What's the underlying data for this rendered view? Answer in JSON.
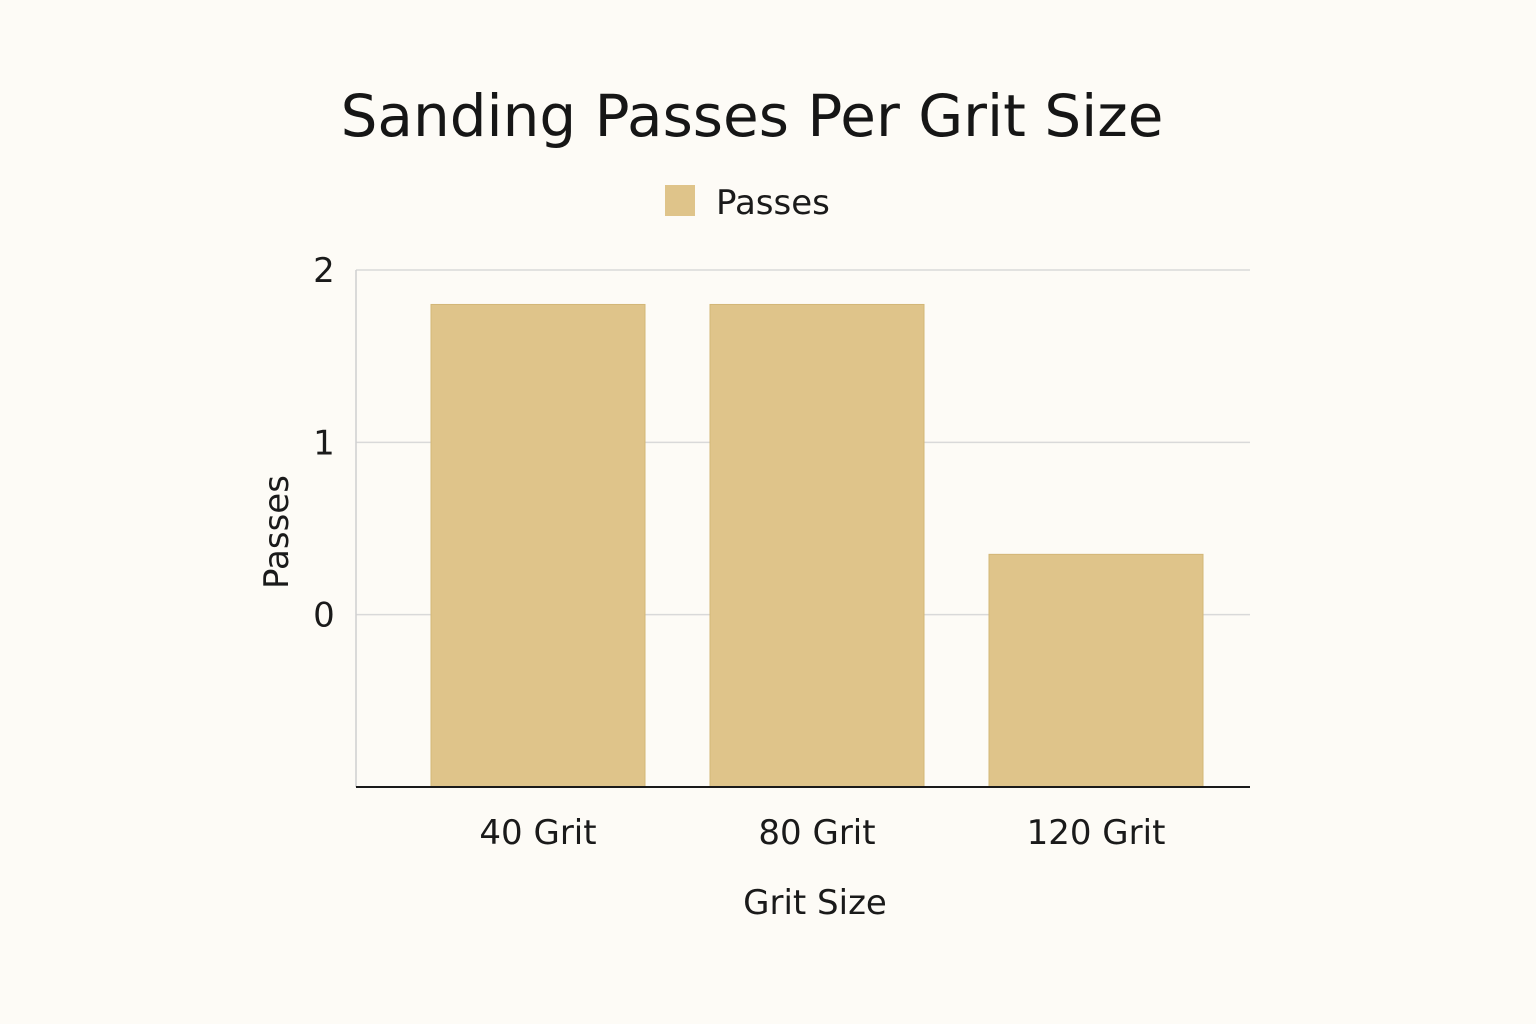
{
  "chart_data": {
    "type": "bar",
    "title": "Sanding Passes Per Grit Size",
    "xlabel": "Grit Size",
    "ylabel": "Passes",
    "categories": [
      "40 Grit",
      "80 Grit",
      "120 Grit"
    ],
    "series": [
      {
        "name": "Passes",
        "values": [
          1.8,
          1.8,
          0.35
        ]
      }
    ],
    "yticks": [
      0,
      1,
      2
    ],
    "ylim": [
      -1,
      2
    ],
    "grid": true,
    "legend": "top-center",
    "colors": {
      "bar": "#dfc48a",
      "bar_edge": "#d3b777",
      "grid": "#d9d9d9",
      "axis": "#1a1a1a",
      "background": "#fdfbf6"
    }
  }
}
